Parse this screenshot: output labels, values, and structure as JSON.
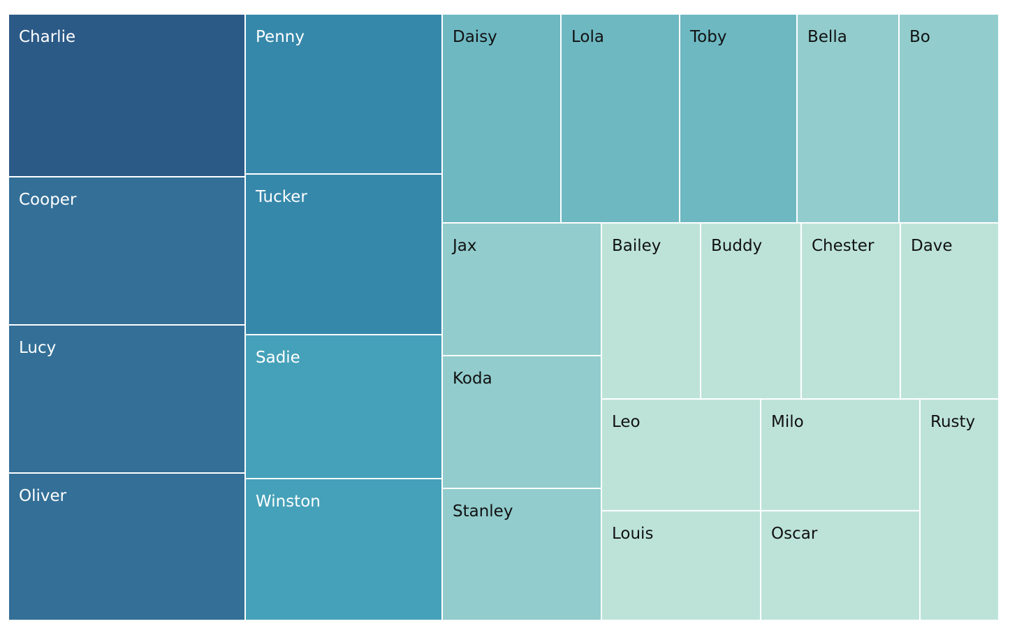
{
  "chart_data": {
    "type": "treemap",
    "title": "",
    "colors": {
      "text_dark": "#111111",
      "text_light": "#ffffff",
      "border": "#ffffff"
    },
    "items": [
      {
        "name": "Charlie",
        "value": 78,
        "color": "#2c5a87"
      },
      {
        "name": "Cooper",
        "value": 71,
        "color": "#336f97"
      },
      {
        "name": "Lucy",
        "value": 71,
        "color": "#336f97"
      },
      {
        "name": "Oliver",
        "value": 71,
        "color": "#336f97"
      },
      {
        "name": "Penny",
        "value": 54,
        "color": "#3688ab"
      },
      {
        "name": "Tucker",
        "value": 54,
        "color": "#3688ab"
      },
      {
        "name": "Sadie",
        "value": 48,
        "color": "#45a1b9"
      },
      {
        "name": "Winston",
        "value": 48,
        "color": "#45a1b9"
      },
      {
        "name": "Daisy",
        "value": 42,
        "color": "#6eb8c2"
      },
      {
        "name": "Lola",
        "value": 42,
        "color": "#6eb8c2"
      },
      {
        "name": "Toby",
        "value": 42,
        "color": "#6eb8c2"
      },
      {
        "name": "Bella",
        "value": 36,
        "color": "#92cccd"
      },
      {
        "name": "Bo",
        "value": 36,
        "color": "#92cccd"
      },
      {
        "name": "Jax",
        "value": 36,
        "color": "#92cccd"
      },
      {
        "name": "Koda",
        "value": 36,
        "color": "#92cccd"
      },
      {
        "name": "Stanley",
        "value": 36,
        "color": "#92cccd"
      },
      {
        "name": "Bailey",
        "value": 30,
        "color": "#bde3d9"
      },
      {
        "name": "Buddy",
        "value": 30,
        "color": "#bde3d9"
      },
      {
        "name": "Chester",
        "value": 30,
        "color": "#bde3d9"
      },
      {
        "name": "Dave",
        "value": 30,
        "color": "#bde3d9"
      },
      {
        "name": "Leo",
        "value": 30,
        "color": "#bde3d9"
      },
      {
        "name": "Milo",
        "value": 30,
        "color": "#bde3d9"
      },
      {
        "name": "Louis",
        "value": 30,
        "color": "#bde3d9"
      },
      {
        "name": "Oscar",
        "value": 30,
        "color": "#bde3d9"
      },
      {
        "name": "Rusty",
        "value": 30,
        "color": "#bde3d9"
      }
    ]
  }
}
